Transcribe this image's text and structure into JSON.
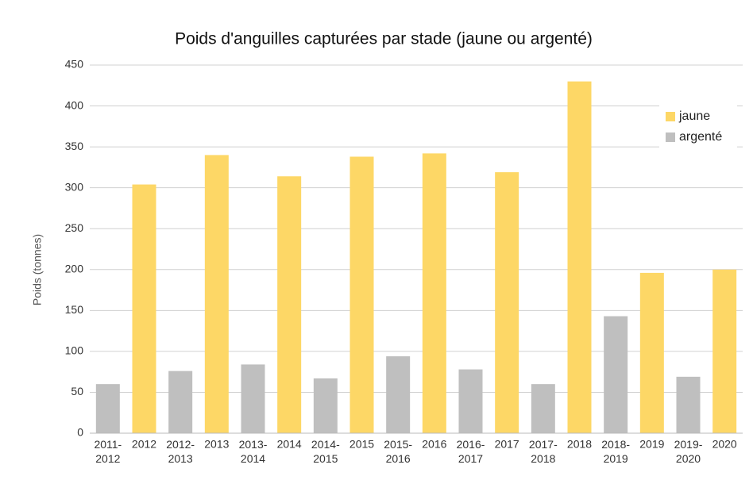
{
  "chart_data": {
    "type": "bar",
    "title": "Poids d'anguilles capturées par stade (jaune ou argenté)",
    "y_label": "Poids (tonnes)",
    "categories": [
      "2011-2012",
      "2012",
      "2012-2013",
      "2013",
      "2013-2014",
      "2014",
      "2014-2015",
      "2015",
      "2015-2016",
      "2016",
      "2016-2017",
      "2017",
      "2017-2018",
      "2018",
      "2018-2019",
      "2019",
      "2019-2020",
      "2020"
    ],
    "series": [
      {
        "name": "jaune",
        "color": "#fdd766",
        "values": [
          null,
          304,
          null,
          340,
          null,
          314,
          null,
          338,
          null,
          342,
          null,
          319,
          null,
          430,
          null,
          196,
          null,
          200
        ]
      },
      {
        "name": "argenté",
        "color": "#bfbfbf",
        "values": [
          60,
          null,
          76,
          null,
          84,
          null,
          67,
          null,
          94,
          null,
          78,
          null,
          60,
          null,
          143,
          null,
          69,
          null
        ]
      }
    ],
    "ylim": [
      0,
      450
    ],
    "yticks": [
      0,
      50,
      100,
      150,
      200,
      250,
      300,
      350,
      400,
      450
    ],
    "grid": true,
    "legend": "upper right"
  }
}
